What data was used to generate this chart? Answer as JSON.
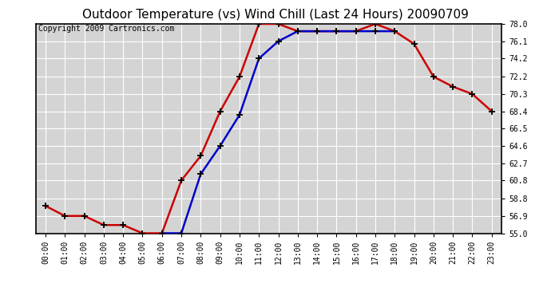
{
  "title": "Outdoor Temperature (vs) Wind Chill (Last 24 Hours) 20090709",
  "copyright": "Copyright 2009 Cartronics.com",
  "x_labels": [
    "00:00",
    "01:00",
    "02:00",
    "03:00",
    "04:00",
    "05:00",
    "06:00",
    "07:00",
    "08:00",
    "09:00",
    "10:00",
    "11:00",
    "12:00",
    "13:00",
    "14:00",
    "15:00",
    "16:00",
    "17:00",
    "18:00",
    "19:00",
    "20:00",
    "21:00",
    "22:00",
    "23:00"
  ],
  "temp": [
    58.0,
    56.9,
    56.9,
    55.9,
    55.9,
    55.0,
    55.0,
    60.8,
    63.5,
    68.4,
    72.2,
    78.0,
    78.0,
    77.2,
    77.2,
    77.2,
    77.2,
    78.0,
    77.2,
    75.8,
    72.2,
    71.1,
    70.3,
    68.4
  ],
  "wind_chill": [
    null,
    null,
    null,
    null,
    null,
    null,
    55.0,
    55.0,
    61.5,
    64.6,
    68.0,
    74.2,
    76.1,
    77.2,
    77.2,
    77.2,
    77.2,
    77.2,
    77.2,
    null,
    null,
    null,
    null,
    null
  ],
  "temp_color": "#cc0000",
  "wind_chill_color": "#0000cc",
  "background_color": "#ffffff",
  "plot_bg_color": "#d4d4d4",
  "grid_color": "#ffffff",
  "ylim_min": 55.0,
  "ylim_max": 78.0,
  "yticks": [
    55.0,
    56.9,
    58.8,
    60.8,
    62.7,
    64.6,
    66.5,
    68.4,
    70.3,
    72.2,
    74.2,
    76.1,
    78.0
  ],
  "ytick_labels": [
    "55.0",
    "56.9",
    "58.8",
    "60.8",
    "62.7",
    "64.6",
    "66.5",
    "68.4",
    "70.3",
    "72.2",
    "74.2",
    "76.1",
    "78.0"
  ],
  "linewidth": 1.8,
  "title_fontsize": 11,
  "tick_fontsize": 7,
  "copyright_fontsize": 7
}
